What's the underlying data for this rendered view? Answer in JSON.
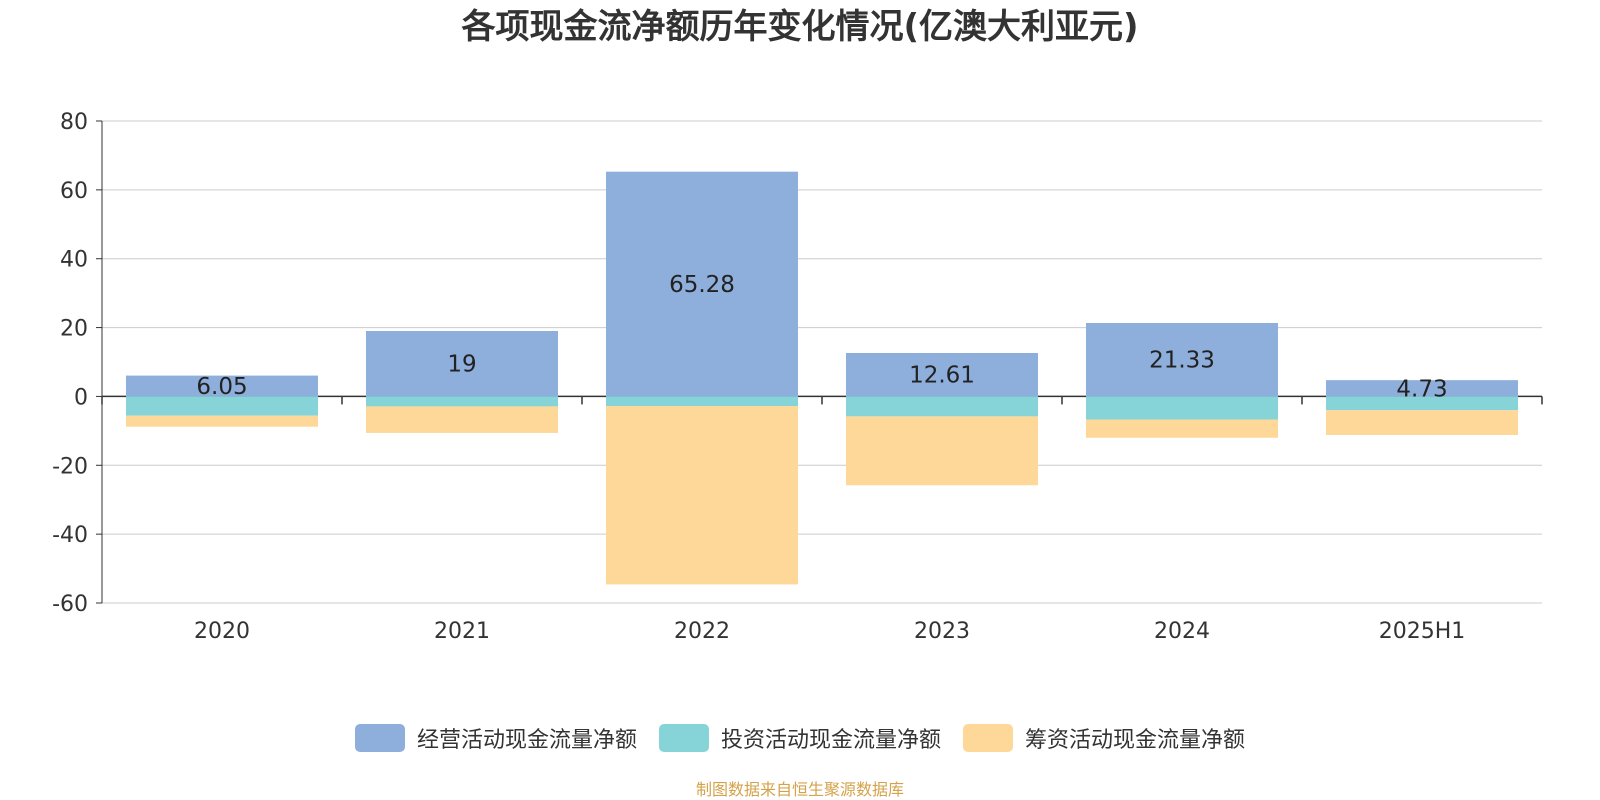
{
  "chart_data": {
    "type": "bar",
    "stacked": true,
    "title": "各项现金流净额历年变化情况(亿澳大利亚元)",
    "categories": [
      "2020",
      "2021",
      "2022",
      "2023",
      "2024",
      "2025H1"
    ],
    "ylim": [
      -60,
      80
    ],
    "yticks": [
      80,
      60,
      40,
      20,
      0,
      -20,
      -40,
      -60
    ],
    "grid": true,
    "legend_position": "bottom",
    "series": [
      {
        "name": "经营活动现金流量净额",
        "color": "#8eaedb",
        "values": [
          6.05,
          19,
          65.28,
          12.61,
          21.33,
          4.73
        ],
        "labels": [
          "6.05",
          "19",
          "65.28",
          "12.61",
          "21.33",
          "4.73"
        ]
      },
      {
        "name": "投资活动现金流量净额",
        "color": "#86d4d8",
        "values": [
          -5.6,
          -2.9,
          -2.8,
          -5.8,
          -6.7,
          -4.0
        ]
      },
      {
        "name": "筹资活动现金流量净额",
        "color": "#fdd898",
        "values": [
          -3.2,
          -7.7,
          -51.8,
          -20.0,
          -5.3,
          -7.2
        ]
      }
    ]
  },
  "source_note": "制图数据来自恒生聚源数据库"
}
